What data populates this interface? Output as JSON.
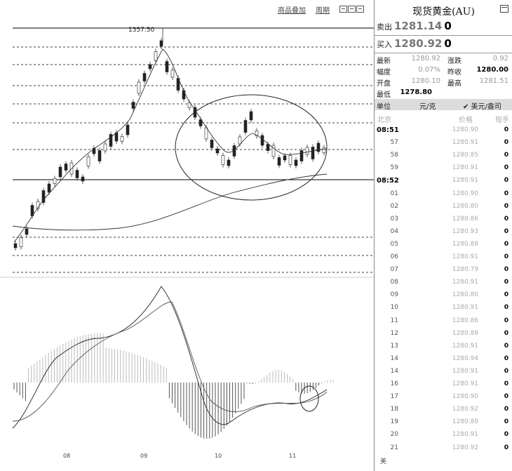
{
  "toolbar": {
    "overlay_label": "商品叠加",
    "period_label": "周期"
  },
  "chart": {
    "peak_label": "1357.50",
    "x_labels": [
      "08",
      "09",
      "10",
      "11"
    ]
  },
  "quote": {
    "title": "现货黄金(AU)",
    "sell_label": "卖出",
    "sell_price": "1281.14",
    "sell_volume": "0",
    "buy_label": "买入",
    "buy_price": "1280.92",
    "buy_volume": "0",
    "stats": [
      {
        "label": "最新",
        "value": "1280.92",
        "label2": "涨跌",
        "value2": "0.92"
      },
      {
        "label": "幅度",
        "value": "0.07%",
        "label2": "昨收",
        "value2": "1280.00"
      },
      {
        "label": "开盘",
        "value": "1280.10",
        "label2": "最高",
        "value2": "1281.51"
      },
      {
        "label": "最低",
        "value": "1278.80"
      }
    ],
    "unit_label": "单位",
    "unit_value": "元/克",
    "unit_selected": "✔ 美元/盎司",
    "col_time": "北京",
    "col_price": "价格",
    "col_volume": "现手",
    "ticks": [
      {
        "time": "08:51",
        "price": "1280.90",
        "vol": "0"
      },
      {
        "time": "57",
        "price": "1280.91",
        "vol": "0"
      },
      {
        "time": "58",
        "price": "1280.85",
        "vol": "0"
      },
      {
        "time": "59",
        "price": "1280.91",
        "vol": "0"
      },
      {
        "time": "08:52",
        "price": "1280.91",
        "vol": "0"
      },
      {
        "time": "01",
        "price": "1280.90",
        "vol": "0"
      },
      {
        "time": "02",
        "price": "1280.80",
        "vol": "0"
      },
      {
        "time": "03",
        "price": "1280.86",
        "vol": "0"
      },
      {
        "time": "04",
        "price": "1280.93",
        "vol": "0"
      },
      {
        "time": "05",
        "price": "1280.89",
        "vol": "0"
      },
      {
        "time": "06",
        "price": "1280.91",
        "vol": "0"
      },
      {
        "time": "07",
        "price": "1280.79",
        "vol": "0"
      },
      {
        "time": "08",
        "price": "1280.91",
        "vol": "0"
      },
      {
        "time": "09",
        "price": "1280.80",
        "vol": "0"
      },
      {
        "time": "10",
        "price": "1280.91",
        "vol": "0"
      },
      {
        "time": "11",
        "price": "1280.86",
        "vol": "0"
      },
      {
        "time": "12",
        "price": "1280.89",
        "vol": "0"
      },
      {
        "time": "13",
        "price": "1280.91",
        "vol": "0"
      },
      {
        "time": "14",
        "price": "1280.94",
        "vol": "0"
      },
      {
        "time": "14",
        "price": "1280.91",
        "vol": "0"
      },
      {
        "time": "16",
        "price": "1280.91",
        "vol": "0"
      },
      {
        "time": "17",
        "price": "1280.90",
        "vol": "0"
      },
      {
        "time": "18",
        "price": "1280.92",
        "vol": "0"
      },
      {
        "time": "19",
        "price": "1280.89",
        "vol": "0"
      },
      {
        "time": "20",
        "price": "1280.91",
        "vol": "0"
      },
      {
        "time": "21",
        "price": "1280.92",
        "vol": "0"
      }
    ],
    "footer": "美"
  }
}
